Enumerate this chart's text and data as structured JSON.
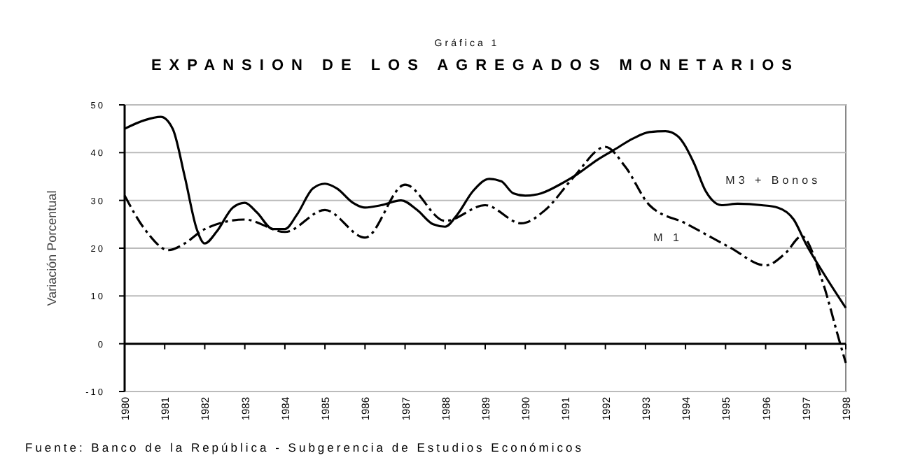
{
  "chart_data": {
    "type": "line",
    "subtitle": "Gráfica 1",
    "title": "EXPANSION DE LOS AGREGADOS MONETARIOS",
    "ylabel": "Variación Porcentual",
    "xlim": [
      1980,
      1998
    ],
    "xticks": [
      1980,
      1981,
      1982,
      1983,
      1984,
      1985,
      1986,
      1987,
      1988,
      1989,
      1990,
      1991,
      1992,
      1993,
      1994,
      1995,
      1996,
      1997,
      1998
    ],
    "ylim": [
      -10,
      50
    ],
    "yticks": [
      -10,
      0,
      10,
      20,
      30,
      40,
      50
    ],
    "grid": "y",
    "marker": "none",
    "series": [
      {
        "name": "M3 + Bonos",
        "color": "#000000",
        "line_style": "solid",
        "x": [
          1980.0,
          1980.5,
          1980.9,
          1981.2,
          1981.5,
          1981.8,
          1982.0,
          1982.3,
          1982.7,
          1983.0,
          1983.3,
          1983.7,
          1984.0,
          1984.3,
          1984.7,
          1985.0,
          1985.3,
          1985.7,
          1986.0,
          1986.4,
          1986.9,
          1987.3,
          1987.7,
          1988.0,
          1988.3,
          1988.7,
          1989.1,
          1989.4,
          1989.7,
          1990.0,
          1990.4,
          1990.9,
          1991.3,
          1991.8,
          1992.2,
          1992.7,
          1993.1,
          1993.5,
          1993.8,
          1994.2,
          1994.5,
          1994.9,
          1995.3,
          1995.9,
          1996.3,
          1996.7,
          1997.0,
          1997.5,
          1998.0
        ],
        "values": [
          45,
          46.8,
          47.5,
          45,
          35,
          24,
          21,
          23.5,
          28.5,
          29.5,
          27.5,
          24,
          24,
          27,
          32.5,
          33.5,
          32.5,
          29.5,
          28.5,
          29,
          30,
          28,
          25,
          24.5,
          27,
          32,
          34.5,
          34,
          31.5,
          31,
          31.5,
          33.5,
          35.5,
          38.5,
          40.5,
          43,
          44.3,
          44.5,
          43.5,
          38,
          32,
          29,
          29.3,
          29,
          28.5,
          26,
          21,
          14,
          7.5
        ]
      },
      {
        "name": "M 1",
        "color": "#000000",
        "line_style": "dashed",
        "x": [
          1980.0,
          1980.5,
          1981.1,
          1981.5,
          1982.0,
          1983.0,
          1984.0,
          1985.0,
          1986.0,
          1987.0,
          1988.0,
          1989.0,
          1989.9,
          1990.5,
          1991.2,
          1992.0,
          1992.5,
          1993.1,
          1994.0,
          1995.1,
          1996.0,
          1996.5,
          1996.9,
          1997.4,
          1997.85,
          1998.0
        ],
        "values": [
          31,
          24,
          19.6,
          21,
          24,
          26,
          23.4,
          28,
          22.2,
          33.3,
          25.7,
          29,
          25.2,
          28,
          34.8,
          41.2,
          37,
          29,
          25.2,
          20.2,
          16.4,
          19,
          22.5,
          13.5,
          0.3,
          -4
        ]
      }
    ],
    "annotations": [
      "Fuente: Banco de la República - Subgerencia de Estudios Económicos"
    ]
  }
}
